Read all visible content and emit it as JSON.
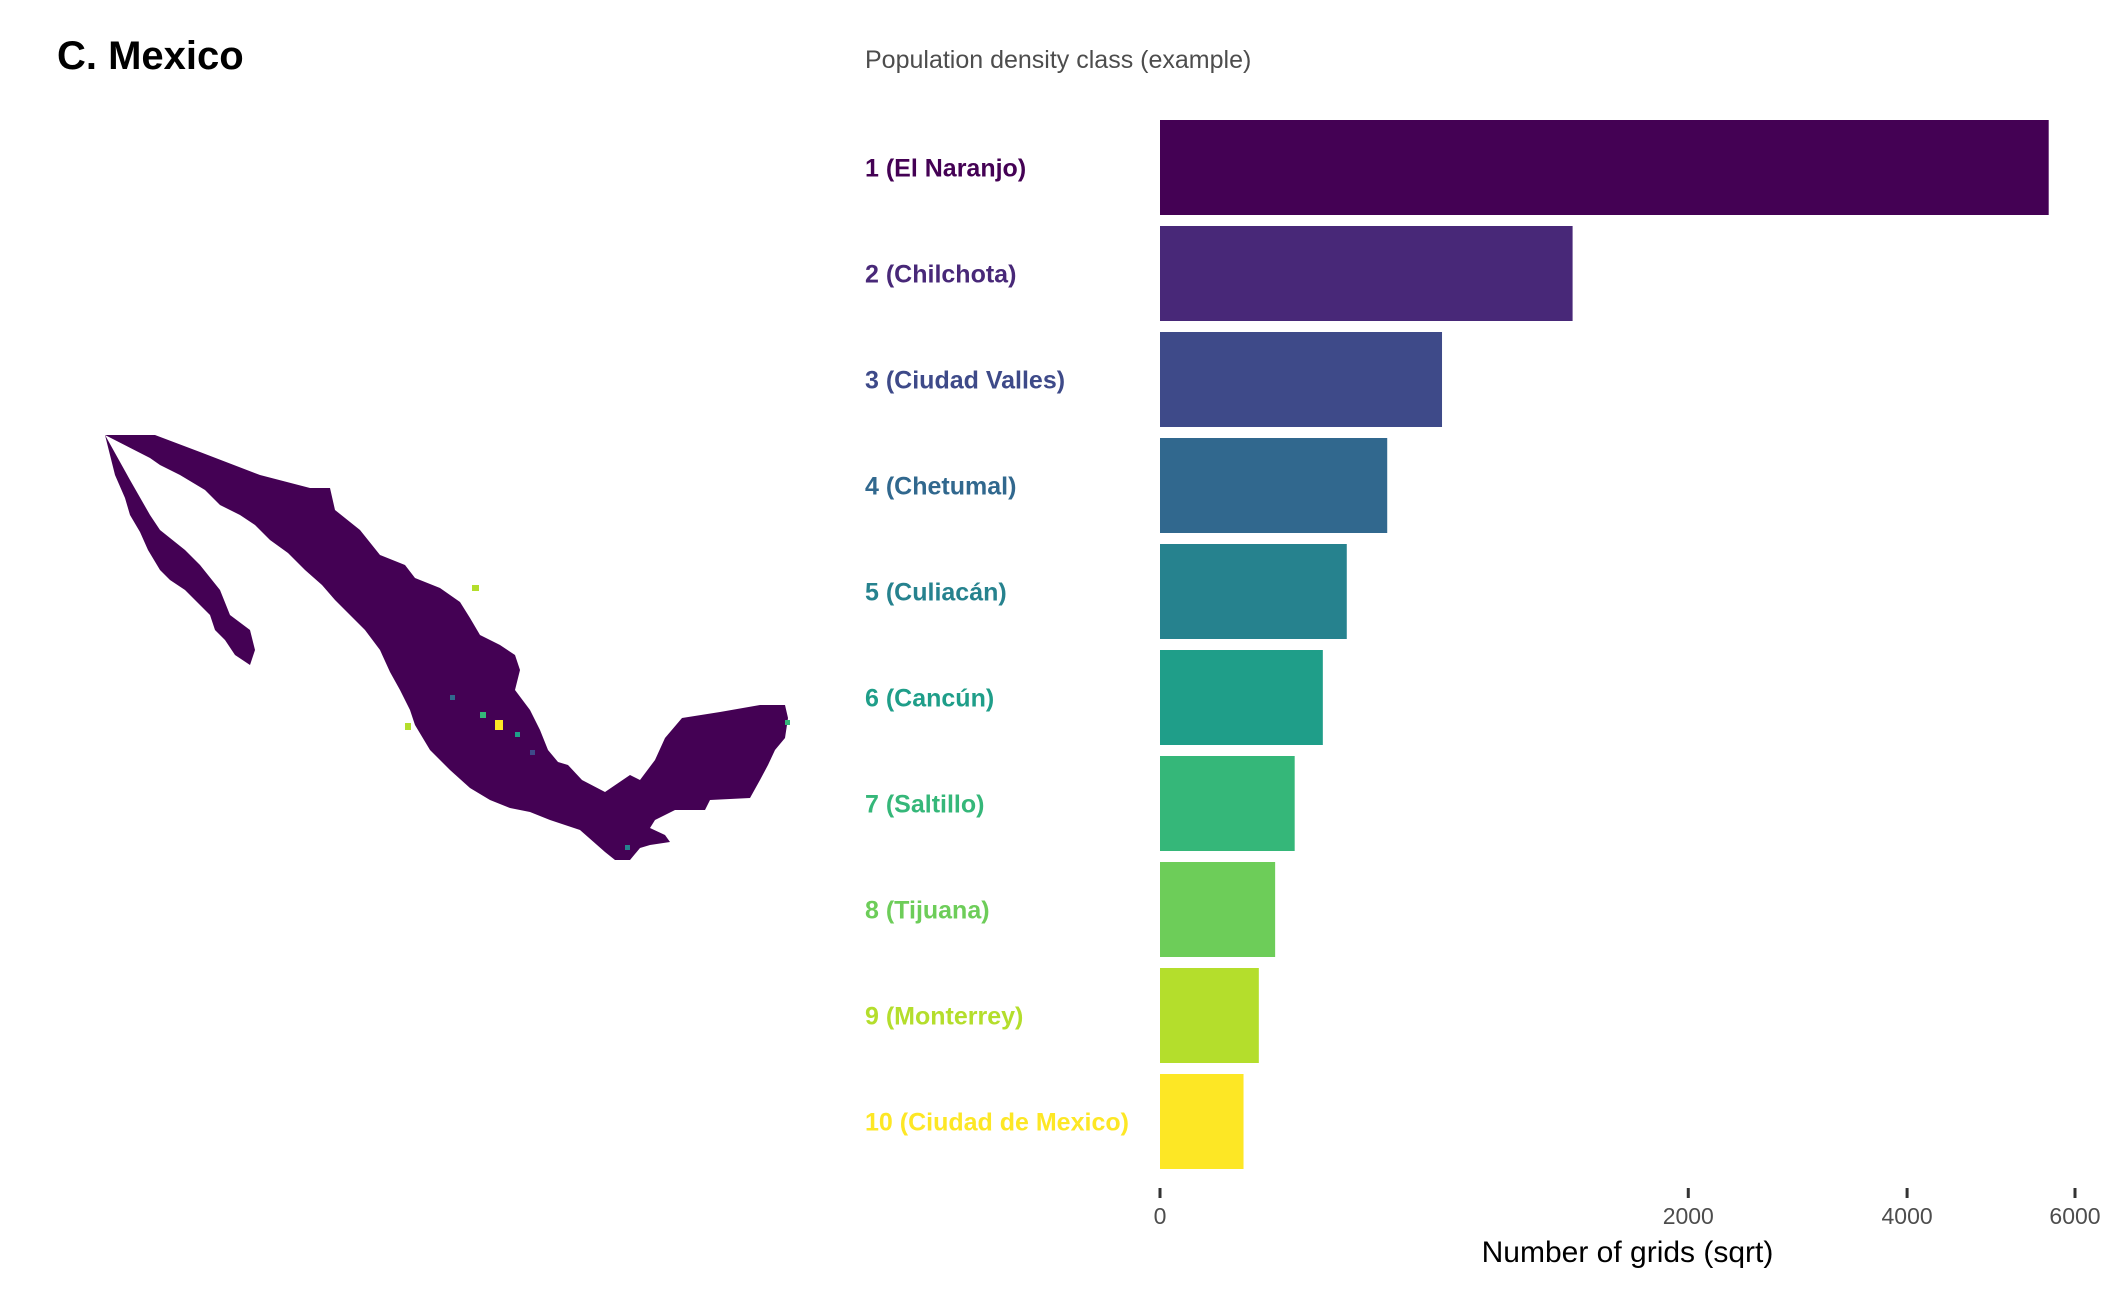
{
  "panel_title": "C. Mexico",
  "colors": [
    "#440154",
    "#482878",
    "#3e4a89",
    "#31688e",
    "#26828e",
    "#1f9e89",
    "#35b779",
    "#6dcd59",
    "#b4de2c",
    "#fde725"
  ],
  "chart_data": {
    "type": "bar",
    "orientation": "horizontal",
    "legend_title": "Population density class (example)",
    "categories": [
      "1 (El Naranjo)",
      "2 (Chilchota)",
      "3 (Ciudad Valles)",
      "4 (Chetumal)",
      "5 (Culiacán)",
      "6 (Cancún)",
      "7 (Saltillo)",
      "8 (Tijuana)",
      "9 (Monterrey)",
      "10 (Ciudad de Mexico)"
    ],
    "values": [
      5660,
      1220,
      570,
      370,
      250,
      190,
      130,
      95,
      70,
      50
    ],
    "xlabel": "Number of grids (sqrt)",
    "x_scale": "sqrt",
    "xlim": [
      0,
      6000
    ],
    "xticks": [
      0,
      2000,
      4000,
      6000
    ],
    "xtick_labels": [
      "0",
      "2000",
      "4000",
      "6000"
    ],
    "grid": false
  }
}
